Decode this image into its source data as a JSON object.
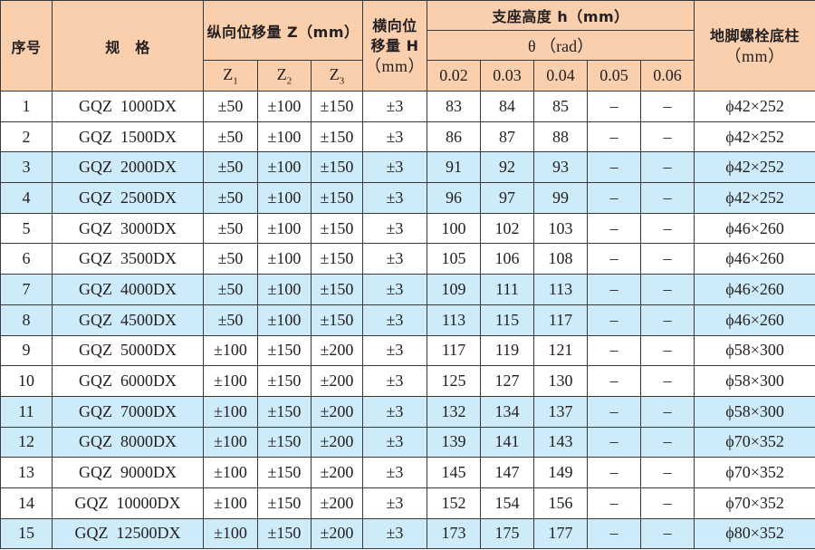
{
  "header": {
    "no": "序号",
    "spec": "规　格",
    "z_group": "纵向位移量 Z（mm）",
    "z_cols": [
      {
        "base": "Z",
        "sub": "1"
      },
      {
        "base": "Z",
        "sub": "2"
      },
      {
        "base": "Z",
        "sub": "3"
      }
    ],
    "h_line1": "横向位",
    "h_line2": "移量 H",
    "h_line3": "（mm）",
    "height_group": "支座高度 h（mm）",
    "theta": "θ （rad）",
    "theta_cols": [
      "0.02",
      "0.03",
      "0.04",
      "0.05",
      "0.06"
    ],
    "bolt_line1": "地脚螺栓底柱",
    "bolt_line2": "（mm）"
  },
  "colors": {
    "header_bg": "#f9cfae",
    "highlight_bg": "#cdebf8"
  },
  "rows": [
    {
      "no": "1",
      "spec": "GQZ  1000DX",
      "z1": "±50",
      "z2": "±100",
      "z3": "±150",
      "h": "±3",
      "h002": "83",
      "h003": "84",
      "h004": "85",
      "h005": "–",
      "h006": "–",
      "bolt": "ϕ42×252",
      "highlight": false
    },
    {
      "no": "2",
      "spec": "GQZ  1500DX",
      "z1": "±50",
      "z2": "±100",
      "z3": "±150",
      "h": "±3",
      "h002": "86",
      "h003": "87",
      "h004": "88",
      "h005": "–",
      "h006": "–",
      "bolt": "ϕ42×252",
      "highlight": false
    },
    {
      "no": "3",
      "spec": "GQZ  2000DX",
      "z1": "±50",
      "z2": "±100",
      "z3": "±150",
      "h": "±3",
      "h002": "91",
      "h003": "92",
      "h004": "93",
      "h005": "–",
      "h006": "–",
      "bolt": "ϕ42×252",
      "highlight": true
    },
    {
      "no": "4",
      "spec": "GQZ  2500DX",
      "z1": "±50",
      "z2": "±100",
      "z3": "±150",
      "h": "±3",
      "h002": "96",
      "h003": "97",
      "h004": "99",
      "h005": "–",
      "h006": "–",
      "bolt": "ϕ42×252",
      "highlight": true
    },
    {
      "no": "5",
      "spec": "GQZ  3000DX",
      "z1": "±50",
      "z2": "±100",
      "z3": "±150",
      "h": "±3",
      "h002": "100",
      "h003": "102",
      "h004": "103",
      "h005": "–",
      "h006": "–",
      "bolt": "ϕ46×260",
      "highlight": false
    },
    {
      "no": "6",
      "spec": "GQZ  3500DX",
      "z1": "±50",
      "z2": "±100",
      "z3": "±150",
      "h": "±3",
      "h002": "105",
      "h003": "106",
      "h004": "108",
      "h005": "–",
      "h006": "–",
      "bolt": "ϕ46×260",
      "highlight": false
    },
    {
      "no": "7",
      "spec": "GQZ  4000DX",
      "z1": "±50",
      "z2": "±100",
      "z3": "±150",
      "h": "±3",
      "h002": "109",
      "h003": "111",
      "h004": "113",
      "h005": "–",
      "h006": "–",
      "bolt": "ϕ46×260",
      "highlight": true
    },
    {
      "no": "8",
      "spec": "GQZ  4500DX",
      "z1": "±50",
      "z2": "±100",
      "z3": "±150",
      "h": "±3",
      "h002": "113",
      "h003": "115",
      "h004": "117",
      "h005": "–",
      "h006": "–",
      "bolt": "ϕ46×260",
      "highlight": true
    },
    {
      "no": "9",
      "spec": "GQZ  5000DX",
      "z1": "±100",
      "z2": "±150",
      "z3": "±200",
      "h": "±3",
      "h002": "117",
      "h003": "119",
      "h004": "121",
      "h005": "–",
      "h006": "–",
      "bolt": "ϕ58×300",
      "highlight": false
    },
    {
      "no": "10",
      "spec": "GQZ  6000DX",
      "z1": "±100",
      "z2": "±150",
      "z3": "±200",
      "h": "±3",
      "h002": "125",
      "h003": "127",
      "h004": "130",
      "h005": "–",
      "h006": "–",
      "bolt": "ϕ58×300",
      "highlight": false
    },
    {
      "no": "11",
      "spec": "GQZ  7000DX",
      "z1": "±100",
      "z2": "±150",
      "z3": "±200",
      "h": "±3",
      "h002": "132",
      "h003": "134",
      "h004": "137",
      "h005": "–",
      "h006": "–",
      "bolt": "ϕ58×300",
      "highlight": true
    },
    {
      "no": "12",
      "spec": "GQZ  8000DX",
      "z1": "±100",
      "z2": "±150",
      "z3": "±200",
      "h": "±3",
      "h002": "139",
      "h003": "141",
      "h004": "143",
      "h005": "–",
      "h006": "–",
      "bolt": "ϕ70×352",
      "highlight": true
    },
    {
      "no": "13",
      "spec": "GQZ  9000DX",
      "z1": "±100",
      "z2": "±150",
      "z3": "±200",
      "h": "±3",
      "h002": "145",
      "h003": "147",
      "h004": "149",
      "h005": "–",
      "h006": "–",
      "bolt": "ϕ70×352",
      "highlight": false
    },
    {
      "no": "14",
      "spec": "GQZ  10000DX",
      "z1": "±100",
      "z2": "±150",
      "z3": "±200",
      "h": "±3",
      "h002": "152",
      "h003": "154",
      "h004": "156",
      "h005": "–",
      "h006": "–",
      "bolt": "ϕ70×352",
      "highlight": false
    },
    {
      "no": "15",
      "spec": "GQZ  12500DX",
      "z1": "±100",
      "z2": "±150",
      "z3": "±200",
      "h": "±3",
      "h002": "173",
      "h003": "175",
      "h004": "177",
      "h005": "–",
      "h006": "–",
      "bolt": "ϕ80×352",
      "highlight": true
    }
  ]
}
